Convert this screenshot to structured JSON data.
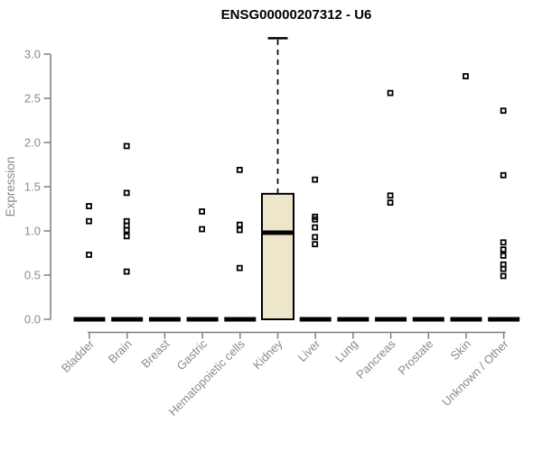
{
  "title": "ENSG00000207312 - U6",
  "y_axis": {
    "label": "Expression",
    "tick_labels": [
      "0.0",
      "0.5",
      "1.0",
      "1.5",
      "2.0",
      "2.5",
      "3.0"
    ]
  },
  "x_axis": {
    "categories": [
      "Bladder",
      "Brain",
      "Breast",
      "Gastric",
      "Hematopoietic cells",
      "Kidney",
      "Liver",
      "Lung",
      "Pancreas",
      "Prostate",
      "Skin",
      "Unknown / Other"
    ]
  },
  "colors": {
    "background": "#ffffff",
    "axis_line": "#7f7f7f",
    "tick_text": "#8a8a8a",
    "title_text": "#000000",
    "box_fill": "#ede6cb",
    "box_stroke": "#000000",
    "median_bar": "#000000",
    "point": "#000000"
  },
  "chart_data": {
    "type": "boxplot",
    "title": "ENSG00000207312 - U6",
    "xlabel": "",
    "ylabel": "Expression",
    "ylim": [
      0,
      3.2
    ],
    "yticks": [
      0,
      0.5,
      1,
      1.5,
      2,
      2.5,
      3
    ],
    "grid": false,
    "legend": "none",
    "point_marker": "open-square",
    "categories": [
      "Bladder",
      "Brain",
      "Breast",
      "Gastric",
      "Hematopoietic cells",
      "Kidney",
      "Liver",
      "Lung",
      "Pancreas",
      "Prostate",
      "Skin",
      "Unknown / Other"
    ],
    "boxes": [
      {
        "category": "Bladder",
        "q1": 0,
        "median": 0,
        "q3": 0,
        "whisker_low": 0,
        "whisker_high": 0,
        "outliers": [
          1.28,
          1.11,
          0.73
        ]
      },
      {
        "category": "Brain",
        "q1": 0,
        "median": 0,
        "q3": 0,
        "whisker_low": 0,
        "whisker_high": 0,
        "outliers": [
          1.96,
          1.43,
          1.11,
          1.06,
          1.01,
          0.94,
          0.54
        ]
      },
      {
        "category": "Breast",
        "q1": 0,
        "median": 0,
        "q3": 0,
        "whisker_low": 0,
        "whisker_high": 0,
        "outliers": []
      },
      {
        "category": "Gastric",
        "q1": 0,
        "median": 0,
        "q3": 0,
        "whisker_low": 0,
        "whisker_high": 0,
        "outliers": [
          1.22,
          1.02
        ]
      },
      {
        "category": "Hematopoietic cells",
        "q1": 0,
        "median": 0,
        "q3": 0,
        "whisker_low": 0,
        "whisker_high": 0,
        "outliers": [
          1.69,
          1.07,
          1.01,
          0.58
        ]
      },
      {
        "category": "Kidney",
        "q1": 0,
        "median": 0.98,
        "q3": 1.42,
        "whisker_low": 0,
        "whisker_high": 3.18,
        "outliers": []
      },
      {
        "category": "Liver",
        "q1": 0,
        "median": 0,
        "q3": 0,
        "whisker_low": 0,
        "whisker_high": 0,
        "outliers": [
          1.58,
          1.16,
          1.13,
          1.04,
          0.93,
          0.85
        ]
      },
      {
        "category": "Lung",
        "q1": 0,
        "median": 0,
        "q3": 0,
        "whisker_low": 0,
        "whisker_high": 0,
        "outliers": []
      },
      {
        "category": "Pancreas",
        "q1": 0,
        "median": 0,
        "q3": 0,
        "whisker_low": 0,
        "whisker_high": 0,
        "outliers": [
          2.56,
          1.4,
          1.32
        ]
      },
      {
        "category": "Prostate",
        "q1": 0,
        "median": 0,
        "q3": 0,
        "whisker_low": 0,
        "whisker_high": 0,
        "outliers": []
      },
      {
        "category": "Skin",
        "q1": 0,
        "median": 0,
        "q3": 0,
        "whisker_low": 0,
        "whisker_high": 0,
        "outliers": [
          2.75
        ]
      },
      {
        "category": "Unknown / Other",
        "q1": 0,
        "median": 0,
        "q3": 0,
        "whisker_low": 0,
        "whisker_high": 0,
        "outliers": [
          2.36,
          1.63,
          0.87,
          0.79,
          0.72,
          0.62,
          0.57,
          0.49
        ]
      }
    ]
  }
}
